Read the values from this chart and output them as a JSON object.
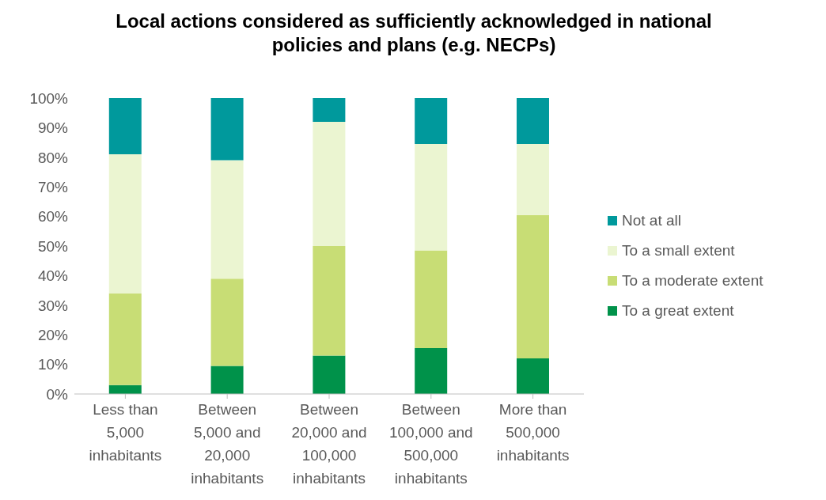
{
  "chart_data": {
    "type": "bar",
    "title": "Local actions considered as sufficiently acknowledged in national policies and plans (e.g. NECPs)",
    "categories": [
      "Less than 5,000 inhabitants",
      "Between 5,000 and 20,000 inhabitants",
      "Between 20,000 and 100,000 inhabitants",
      "Between 100,000 and 500,000 inhabitants",
      "More than 500,000 inhabitants"
    ],
    "stacked": true,
    "series": [
      {
        "name": "To a great extent",
        "color": "#00924a",
        "values": [
          3,
          9.5,
          13,
          15.5,
          12
        ]
      },
      {
        "name": "To a moderate extent",
        "color": "#c8dd75",
        "values": [
          31,
          29.5,
          37,
          33,
          48.5
        ]
      },
      {
        "name": "To a small extent",
        "color": "#ebf5d1",
        "values": [
          47,
          40,
          42,
          36,
          24
        ]
      },
      {
        "name": "Not at all",
        "color": "#00999c",
        "values": [
          19,
          21,
          8,
          15.5,
          15.5
        ]
      }
    ],
    "ylim": [
      0,
      100
    ],
    "yticks": [
      {
        "value": 0,
        "label": "0%"
      },
      {
        "value": 10,
        "label": "10%"
      },
      {
        "value": 20,
        "label": "20%"
      },
      {
        "value": 30,
        "label": "30%"
      },
      {
        "value": 40,
        "label": "40%"
      },
      {
        "value": 50,
        "label": "50%"
      },
      {
        "value": 60,
        "label": "60%"
      },
      {
        "value": 70,
        "label": "70%"
      },
      {
        "value": 80,
        "label": "80%"
      },
      {
        "value": 90,
        "label": "90%"
      },
      {
        "value": 100,
        "label": "100%"
      }
    ],
    "grid": false,
    "legend": "right"
  }
}
